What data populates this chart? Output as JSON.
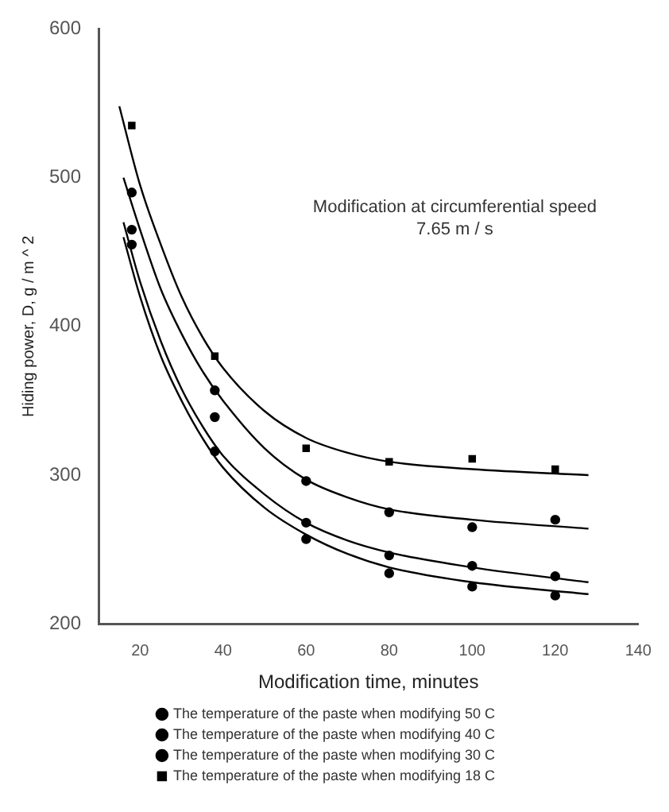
{
  "chart_data": {
    "type": "line",
    "xlabel": "Modification time, minutes",
    "ylabel": "Hiding power, D, g / m ^ 2",
    "annotations": [
      "Modification at circumferential speed 7.65 m / s"
    ],
    "xlim": [
      10,
      140
    ],
    "xticks": [
      20,
      40,
      60,
      80,
      100,
      120,
      140
    ],
    "ylim": [
      200,
      600
    ],
    "yticks": [
      200,
      300,
      400,
      500,
      600
    ],
    "grid": false,
    "legend": "bottom",
    "series": [
      {
        "name": "The temperature of the paste when modifying 50 C",
        "type": "scatter",
        "marker": "circle",
        "color": "#000000",
        "x": [
          18,
          38,
          60,
          80,
          100,
          120
        ],
        "values": [
          455,
          316,
          257,
          234,
          225,
          219
        ]
      },
      {
        "name": "The temperature of the paste when modifying 40 C",
        "type": "scatter",
        "marker": "circle",
        "color": "#000000",
        "x": [
          18,
          38,
          60,
          80,
          100,
          120
        ],
        "values": [
          465,
          339,
          268,
          246,
          239,
          232
        ]
      },
      {
        "name": "The temperature of the paste when modifying 30 C",
        "type": "scatter",
        "marker": "circle",
        "color": "#000000",
        "x": [
          18,
          38,
          60,
          80,
          100,
          120
        ],
        "values": [
          490,
          357,
          296,
          275,
          265,
          270
        ]
      },
      {
        "name": "The temperature of the paste when modifying 18 C",
        "type": "scatter",
        "marker": "square",
        "color": "#000000",
        "x": [
          18,
          38,
          60,
          80,
          100,
          120
        ],
        "values": [
          535,
          380,
          318,
          309,
          311,
          304
        ]
      },
      {
        "marker": "none",
        "color": "#000000",
        "x": [
          16,
          20,
          25,
          30,
          35,
          40,
          50,
          60,
          70,
          80,
          100,
          128
        ],
        "values": [
          460,
          420,
          380,
          350,
          325,
          305,
          278,
          260,
          247,
          238,
          228,
          220
        ]
      },
      {
        "marker": "none",
        "color": "#000000",
        "x": [
          16,
          20,
          25,
          30,
          35,
          40,
          50,
          60,
          70,
          80,
          100,
          128
        ],
        "values": [
          470,
          430,
          390,
          358,
          333,
          313,
          287,
          268,
          256,
          248,
          238,
          228
        ]
      },
      {
        "marker": "none",
        "color": "#000000",
        "x": [
          16,
          20,
          25,
          30,
          35,
          40,
          50,
          60,
          70,
          80,
          100,
          128
        ],
        "values": [
          500,
          465,
          425,
          395,
          370,
          350,
          318,
          297,
          285,
          277,
          270,
          264
        ]
      },
      {
        "marker": "none",
        "color": "#000000",
        "x": [
          15,
          20,
          25,
          30,
          35,
          40,
          50,
          60,
          70,
          80,
          100,
          128
        ],
        "values": [
          548,
          495,
          455,
          420,
          393,
          372,
          343,
          325,
          315,
          309,
          304,
          300
        ]
      }
    ]
  }
}
